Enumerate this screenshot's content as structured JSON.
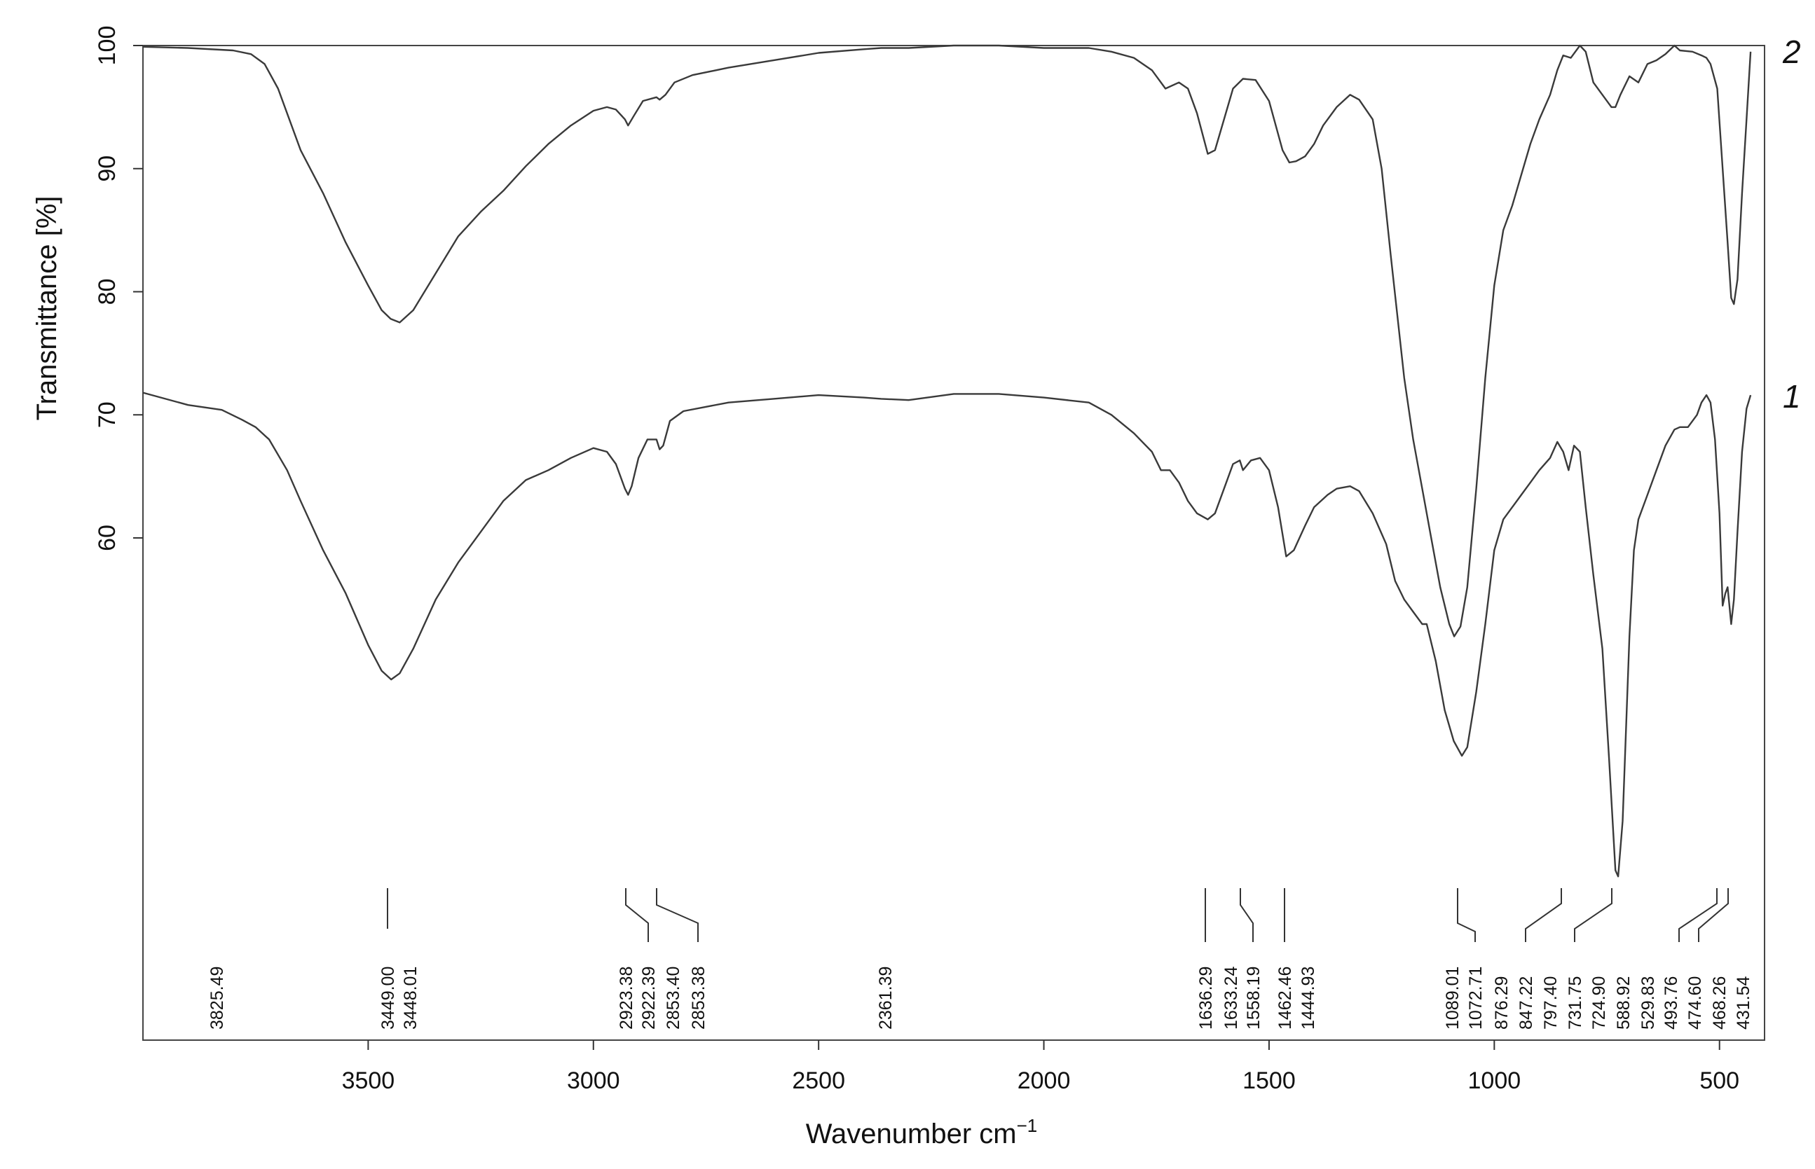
{
  "chart_data": {
    "type": "line",
    "title": "",
    "xlabel": "Wavenumber cm",
    "xlabel_sup": "−1",
    "ylabel": "Transmittance [%]",
    "xlim": [
      4000,
      400
    ],
    "ylim": [
      32,
      100
    ],
    "xticks": [
      3500,
      3000,
      2500,
      2000,
      1500,
      1000,
      500
    ],
    "xtick_labels": [
      "3500",
      "3000",
      "2500",
      "2000",
      "1500",
      "1000",
      "500"
    ],
    "yticks": [
      100,
      90,
      80,
      70,
      60
    ],
    "ytick_labels": [
      "100",
      "90",
      "80",
      "70",
      "60"
    ],
    "grid": false,
    "legend": "none",
    "series": [
      {
        "name": "2",
        "points": [
          [
            4000,
            99.9
          ],
          [
            3900,
            99.8
          ],
          [
            3800,
            99.6
          ],
          [
            3760,
            99.3
          ],
          [
            3730,
            98.5
          ],
          [
            3700,
            96.5
          ],
          [
            3650,
            91.5
          ],
          [
            3600,
            88
          ],
          [
            3550,
            84
          ],
          [
            3500,
            80.5
          ],
          [
            3470,
            78.5
          ],
          [
            3450,
            77.8
          ],
          [
            3430,
            77.5
          ],
          [
            3400,
            78.5
          ],
          [
            3350,
            81.5
          ],
          [
            3300,
            84.5
          ],
          [
            3250,
            86.5
          ],
          [
            3200,
            88.2
          ],
          [
            3150,
            90.2
          ],
          [
            3100,
            92
          ],
          [
            3050,
            93.5
          ],
          [
            3000,
            94.7
          ],
          [
            2970,
            95
          ],
          [
            2950,
            94.8
          ],
          [
            2930,
            94
          ],
          [
            2923,
            93.5
          ],
          [
            2910,
            94.3
          ],
          [
            2890,
            95.5
          ],
          [
            2860,
            95.8
          ],
          [
            2853,
            95.6
          ],
          [
            2840,
            96
          ],
          [
            2820,
            97
          ],
          [
            2780,
            97.6
          ],
          [
            2700,
            98.2
          ],
          [
            2600,
            98.8
          ],
          [
            2500,
            99.4
          ],
          [
            2400,
            99.7
          ],
          [
            2361,
            99.8
          ],
          [
            2300,
            99.8
          ],
          [
            2200,
            100
          ],
          [
            2100,
            100
          ],
          [
            2000,
            99.8
          ],
          [
            1900,
            99.8
          ],
          [
            1850,
            99.5
          ],
          [
            1800,
            99
          ],
          [
            1760,
            98
          ],
          [
            1730,
            96.5
          ],
          [
            1700,
            97
          ],
          [
            1680,
            96.5
          ],
          [
            1660,
            94.5
          ],
          [
            1636,
            91.2
          ],
          [
            1620,
            91.5
          ],
          [
            1600,
            94
          ],
          [
            1580,
            96.5
          ],
          [
            1558,
            97.3
          ],
          [
            1530,
            97.2
          ],
          [
            1500,
            95.5
          ],
          [
            1470,
            91.5
          ],
          [
            1455,
            90.5
          ],
          [
            1440,
            90.6
          ],
          [
            1420,
            91
          ],
          [
            1400,
            92
          ],
          [
            1380,
            93.5
          ],
          [
            1350,
            95
          ],
          [
            1320,
            96
          ],
          [
            1300,
            95.6
          ],
          [
            1270,
            94
          ],
          [
            1250,
            90
          ],
          [
            1230,
            83
          ],
          [
            1200,
            73
          ],
          [
            1180,
            68
          ],
          [
            1160,
            64
          ],
          [
            1140,
            60
          ],
          [
            1120,
            56
          ],
          [
            1100,
            53
          ],
          [
            1089,
            52
          ],
          [
            1075,
            52.8
          ],
          [
            1060,
            56
          ],
          [
            1040,
            64
          ],
          [
            1020,
            73
          ],
          [
            1000,
            80.5
          ],
          [
            980,
            85
          ],
          [
            960,
            87
          ],
          [
            940,
            89.5
          ],
          [
            920,
            92
          ],
          [
            900,
            94
          ],
          [
            876,
            96
          ],
          [
            860,
            98
          ],
          [
            847,
            99.2
          ],
          [
            830,
            99
          ],
          [
            810,
            100
          ],
          [
            797,
            99.5
          ],
          [
            780,
            97
          ],
          [
            760,
            96
          ],
          [
            740,
            95
          ],
          [
            731,
            95
          ],
          [
            720,
            96
          ],
          [
            700,
            97.5
          ],
          [
            680,
            97
          ],
          [
            660,
            98.5
          ],
          [
            640,
            98.8
          ],
          [
            620,
            99.3
          ],
          [
            600,
            100
          ],
          [
            588,
            99.6
          ],
          [
            560,
            99.5
          ],
          [
            540,
            99.2
          ],
          [
            529,
            99
          ],
          [
            520,
            98.5
          ],
          [
            505,
            96.5
          ],
          [
            493,
            90
          ],
          [
            482,
            84
          ],
          [
            474,
            79.5
          ],
          [
            468,
            79
          ],
          [
            460,
            81
          ],
          [
            450,
            88
          ],
          [
            440,
            94
          ],
          [
            431,
            99.5
          ]
        ],
        "tag": "2"
      },
      {
        "name": "1",
        "points": [
          [
            4000,
            71.8
          ],
          [
            3900,
            70.8
          ],
          [
            3825,
            70.4
          ],
          [
            3780,
            69.6
          ],
          [
            3750,
            69
          ],
          [
            3720,
            68
          ],
          [
            3680,
            65.5
          ],
          [
            3650,
            63
          ],
          [
            3600,
            59
          ],
          [
            3550,
            55.5
          ],
          [
            3500,
            51.3
          ],
          [
            3470,
            49.2
          ],
          [
            3449,
            48.5
          ],
          [
            3430,
            49
          ],
          [
            3400,
            51
          ],
          [
            3350,
            55
          ],
          [
            3300,
            58
          ],
          [
            3250,
            60.5
          ],
          [
            3200,
            63
          ],
          [
            3150,
            64.7
          ],
          [
            3100,
            65.5
          ],
          [
            3050,
            66.5
          ],
          [
            3000,
            67.3
          ],
          [
            2970,
            67
          ],
          [
            2950,
            66
          ],
          [
            2930,
            64
          ],
          [
            2923,
            63.5
          ],
          [
            2915,
            64.2
          ],
          [
            2900,
            66.5
          ],
          [
            2880,
            68
          ],
          [
            2860,
            68
          ],
          [
            2853,
            67.2
          ],
          [
            2845,
            67.5
          ],
          [
            2830,
            69.5
          ],
          [
            2800,
            70.3
          ],
          [
            2700,
            71
          ],
          [
            2600,
            71.3
          ],
          [
            2500,
            71.6
          ],
          [
            2400,
            71.4
          ],
          [
            2361,
            71.3
          ],
          [
            2300,
            71.2
          ],
          [
            2200,
            71.7
          ],
          [
            2100,
            71.7
          ],
          [
            2000,
            71.4
          ],
          [
            1900,
            71
          ],
          [
            1850,
            70
          ],
          [
            1800,
            68.5
          ],
          [
            1760,
            67
          ],
          [
            1740,
            65.5
          ],
          [
            1720,
            65.5
          ],
          [
            1700,
            64.5
          ],
          [
            1680,
            63
          ],
          [
            1660,
            62
          ],
          [
            1636,
            61.5
          ],
          [
            1620,
            62
          ],
          [
            1600,
            64
          ],
          [
            1580,
            66
          ],
          [
            1565,
            66.3
          ],
          [
            1558,
            65.5
          ],
          [
            1540,
            66.3
          ],
          [
            1520,
            66.5
          ],
          [
            1500,
            65.5
          ],
          [
            1480,
            62.5
          ],
          [
            1462,
            58.5
          ],
          [
            1445,
            59
          ],
          [
            1420,
            61
          ],
          [
            1400,
            62.5
          ],
          [
            1370,
            63.5
          ],
          [
            1350,
            64
          ],
          [
            1320,
            64.2
          ],
          [
            1300,
            63.8
          ],
          [
            1270,
            62
          ],
          [
            1240,
            59.5
          ],
          [
            1220,
            56.5
          ],
          [
            1200,
            55
          ],
          [
            1180,
            54
          ],
          [
            1160,
            53
          ],
          [
            1150,
            53
          ],
          [
            1130,
            50
          ],
          [
            1110,
            46
          ],
          [
            1090,
            43.5
          ],
          [
            1072,
            42.3
          ],
          [
            1060,
            43
          ],
          [
            1040,
            47.5
          ],
          [
            1020,
            53
          ],
          [
            1000,
            59
          ],
          [
            980,
            61.5
          ],
          [
            960,
            62.5
          ],
          [
            940,
            63.5
          ],
          [
            920,
            64.5
          ],
          [
            900,
            65.5
          ],
          [
            876,
            66.5
          ],
          [
            860,
            67.8
          ],
          [
            847,
            67
          ],
          [
            835,
            65.5
          ],
          [
            823,
            67.5
          ],
          [
            810,
            67
          ],
          [
            797,
            62.5
          ],
          [
            780,
            57
          ],
          [
            760,
            51
          ],
          [
            745,
            42
          ],
          [
            731,
            33
          ],
          [
            725,
            32.5
          ],
          [
            715,
            37
          ],
          [
            700,
            52
          ],
          [
            690,
            59
          ],
          [
            680,
            61.5
          ],
          [
            660,
            63.5
          ],
          [
            640,
            65.5
          ],
          [
            620,
            67.5
          ],
          [
            600,
            68.8
          ],
          [
            588,
            69
          ],
          [
            570,
            69
          ],
          [
            550,
            70
          ],
          [
            540,
            71
          ],
          [
            529,
            71.6
          ],
          [
            520,
            71
          ],
          [
            510,
            68
          ],
          [
            500,
            62
          ],
          [
            493,
            54.5
          ],
          [
            487,
            55.5
          ],
          [
            482,
            56
          ],
          [
            474,
            53
          ],
          [
            468,
            55
          ],
          [
            460,
            60.5
          ],
          [
            450,
            67
          ],
          [
            440,
            70.5
          ],
          [
            431,
            71.6
          ]
        ],
        "tag": "1"
      }
    ],
    "peak_labels": [
      "3825.49",
      "3449.00",
      "3448.01",
      "2923.38",
      "2922.39",
      "2853.40",
      "2853.38",
      "2361.39",
      "1636.29",
      "1633.24",
      "1558.19",
      "1462.46",
      "1444.93",
      "1089.01",
      "1072.71",
      "876.29",
      "847.22",
      "797.40",
      "731.75",
      "724.90",
      "588.92",
      "529.83",
      "493.76",
      "474.60",
      "468.26",
      "431.54"
    ]
  }
}
